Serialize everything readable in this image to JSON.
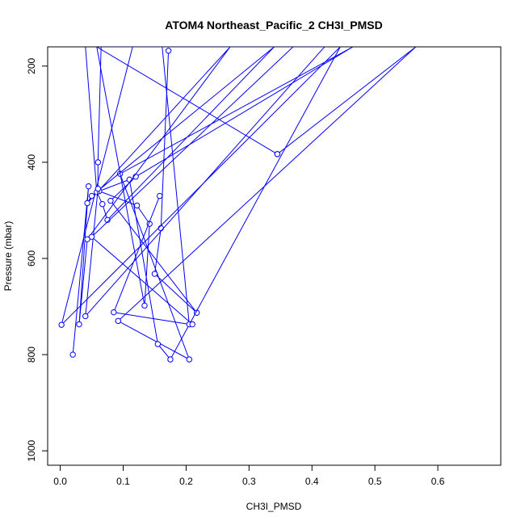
{
  "chart_data": {
    "type": "line",
    "title": "ATOM4 Northeast_Pacific_2 CH3I_PMSD",
    "xlabel": "CH3I_PMSD",
    "ylabel": "Pressure (mbar)",
    "xlim": [
      -0.02,
      0.7
    ],
    "ylim": [
      160,
      1030
    ],
    "y_reversed": true,
    "x_ticks": [
      0.0,
      0.1,
      0.2,
      0.3,
      0.4,
      0.5,
      0.6
    ],
    "x_tick_labels": [
      "0.0",
      "0.1",
      "0.2",
      "0.3",
      "0.4",
      "0.5",
      "0.6"
    ],
    "y_ticks": [
      200,
      400,
      600,
      800,
      1000
    ],
    "y_tick_labels": [
      "200",
      "400",
      "600",
      "800",
      "1000"
    ],
    "grid": false,
    "legend": "none",
    "line_color": "#0000ff",
    "series": [
      {
        "values_x": [
          0.172,
          0.16,
          0.15,
          0.217,
          0.08,
          0.12,
          0.465,
          0.095,
          0.205,
          0.092,
          0.565,
          0.345
        ],
        "values_y": [
          168,
          537,
          632,
          713,
          480,
          430,
          160,
          424,
          810,
          730,
          160,
          383
        ]
      },
      {
        "values_x": [
          0.115,
          0.002,
          0.445,
          0.175,
          0.155,
          0.11,
          0.062,
          0.122,
          0.142,
          0.134,
          0.058,
          0.345
        ],
        "values_y": [
          160,
          738,
          160,
          810,
          778,
          436,
          460,
          490,
          528,
          698,
          160,
          383
        ]
      },
      {
        "values_x": [
          0.04,
          0.058,
          0.067,
          0.075,
          0.34,
          0.05,
          0.043,
          0.27,
          0.043,
          0.03,
          0.045,
          0.02
        ],
        "values_y": [
          160,
          462,
          487,
          520,
          160,
          470,
          485,
          160,
          560,
          737,
          450,
          800
        ]
      },
      {
        "values_x": [
          0.158,
          0.085,
          0.205,
          0.162,
          0.42,
          0.04,
          0.06,
          0.06,
          0.065,
          0.37,
          0.05,
          0.21
        ],
        "values_y": [
          470,
          712,
          737,
          160,
          160,
          720,
          455,
          400,
          160,
          160,
          555,
          737
        ]
      }
    ]
  }
}
